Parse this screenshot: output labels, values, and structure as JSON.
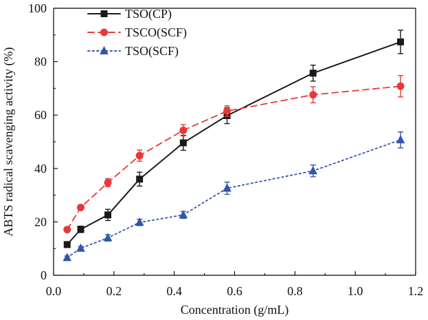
{
  "chart_data": {
    "type": "line",
    "xlabel": "Concentration (g/mL)",
    "ylabel": "ABTS radical scavenging activity (%)",
    "xlim": [
      0.0,
      1.2
    ],
    "ylim": [
      0,
      100
    ],
    "xticks": [
      "0.0",
      "0.2",
      "0.4",
      "0.6",
      "0.8",
      "1.0",
      "1.2"
    ],
    "yticks": [
      "0",
      "20",
      "40",
      "60",
      "80",
      "100"
    ],
    "grid": false,
    "legend_position": "top-left",
    "x": [
      0.045,
      0.09,
      0.18,
      0.285,
      0.43,
      0.575,
      0.86,
      1.15
    ],
    "series": [
      {
        "name": "TSO(CP)",
        "color": "#1a1a1a",
        "marker": "square",
        "line_style": "solid",
        "values": [
          11.5,
          17.2,
          22.6,
          36.0,
          49.6,
          59.8,
          75.7,
          87.4
        ],
        "errors": [
          0.9,
          1.2,
          2.1,
          2.6,
          2.8,
          3.0,
          3.0,
          4.4
        ]
      },
      {
        "name": "TSCO(SCF)",
        "color": "#e8393a",
        "marker": "circle",
        "line_style": "dashed",
        "values": [
          17.1,
          25.4,
          34.7,
          44.8,
          54.3,
          61.5,
          67.6,
          70.8
        ],
        "errors": [
          0.6,
          0.8,
          1.5,
          2.1,
          2.1,
          2.0,
          3.0,
          4.0
        ]
      },
      {
        "name": "TSO(SCF)",
        "color": "#3355aa",
        "marker": "triangle",
        "line_style": "dotted",
        "values": [
          6.6,
          10.1,
          14.0,
          19.8,
          22.6,
          32.6,
          39.1,
          50.7
        ],
        "errors": [
          0.6,
          0.7,
          1.2,
          1.2,
          1.3,
          2.3,
          2.2,
          3.0
        ]
      }
    ]
  }
}
